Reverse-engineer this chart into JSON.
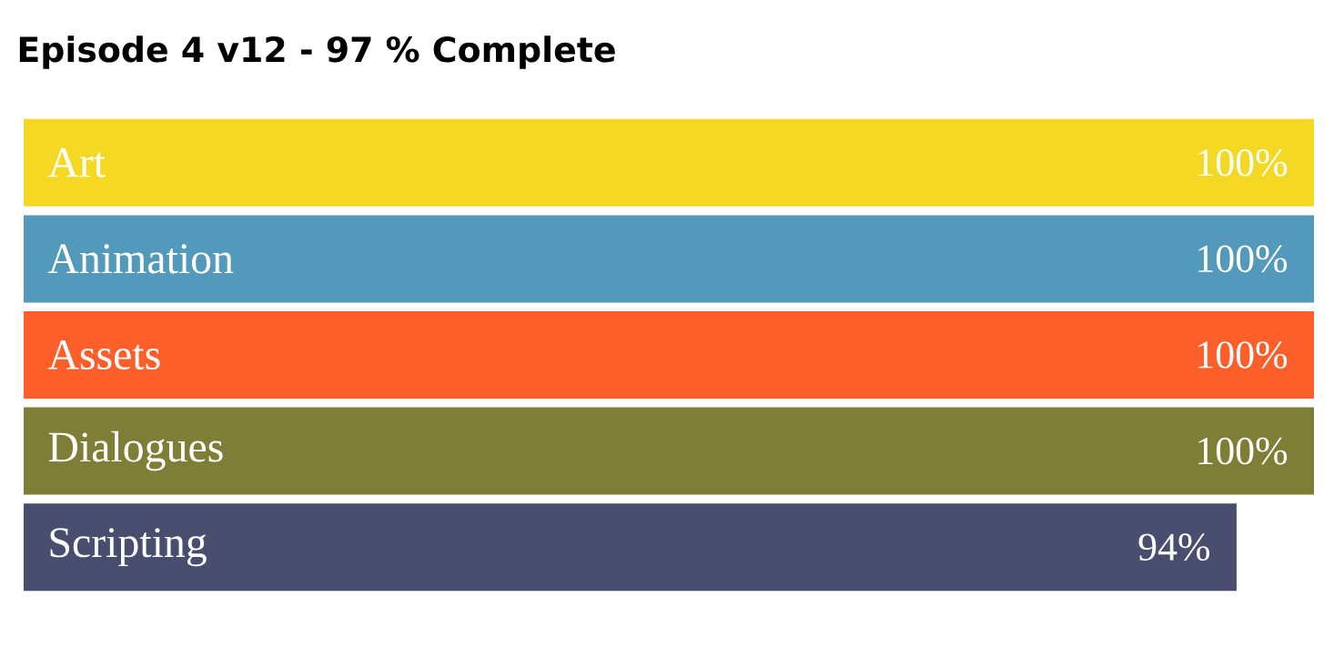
{
  "chart_data": {
    "type": "bar",
    "orientation": "horizontal",
    "title": "Episode 4 v12 -  97 % Complete",
    "categories": [
      "Art",
      "Animation",
      "Assets",
      "Dialogues",
      "Scripting"
    ],
    "values": [
      100,
      100,
      100,
      100,
      94
    ],
    "value_labels": [
      "100%",
      "100%",
      "100%",
      "100%",
      "94%"
    ],
    "colors": [
      "#f5d824",
      "#5399bb",
      "#fd5f2a",
      "#7f7e36",
      "#4a4e6e"
    ],
    "xlim": [
      0,
      100
    ],
    "tick_labels": false
  }
}
